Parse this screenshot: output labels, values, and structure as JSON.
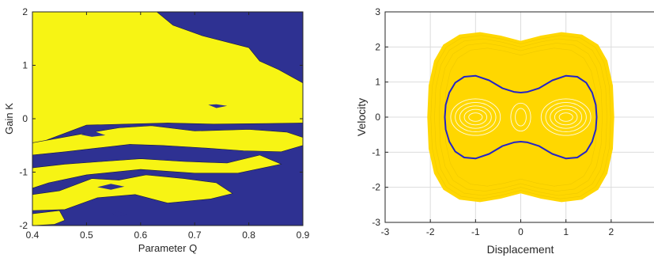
{
  "chart_data": [
    {
      "type": "contour",
      "xlabel": "Parameter Q",
      "ylabel": "Gain K",
      "xlim": [
        0.4,
        0.9
      ],
      "ylim": [
        -2,
        2
      ],
      "xticks": [
        "0.4",
        "0.5",
        "0.6",
        "0.7",
        "0.8",
        "0.9"
      ],
      "yticks": [
        "-2",
        "-1",
        "0",
        "1",
        "2"
      ],
      "colors": {
        "background": "#2E3192",
        "region": "#F7F414"
      },
      "grid": false,
      "regions": [
        [
          [
            0.4,
            2.0
          ],
          [
            0.63,
            2.0
          ],
          [
            0.66,
            1.75
          ],
          [
            0.715,
            1.55
          ],
          [
            0.8,
            1.33
          ],
          [
            0.82,
            1.08
          ],
          [
            0.855,
            0.92
          ],
          [
            0.9,
            0.67
          ],
          [
            0.9,
            -0.08
          ],
          [
            0.835,
            -0.09
          ],
          [
            0.735,
            -0.1
          ],
          [
            0.65,
            -0.08
          ],
          [
            0.5,
            -0.12
          ],
          [
            0.4,
            -0.5
          ]
        ],
        [
          [
            0.4,
            -0.45
          ],
          [
            0.5,
            -0.27
          ],
          [
            0.56,
            -0.17
          ],
          [
            0.62,
            -0.13
          ],
          [
            0.7,
            -0.23
          ],
          [
            0.8,
            -0.2
          ],
          [
            0.87,
            -0.25
          ],
          [
            0.9,
            -0.35
          ],
          [
            0.9,
            -0.5
          ],
          [
            0.86,
            -0.62
          ],
          [
            0.79,
            -0.6
          ],
          [
            0.72,
            -0.55
          ],
          [
            0.64,
            -0.5
          ],
          [
            0.58,
            -0.48
          ],
          [
            0.52,
            -0.55
          ],
          [
            0.46,
            -0.62
          ],
          [
            0.4,
            -0.68
          ]
        ],
        [
          [
            0.4,
            -0.92
          ],
          [
            0.46,
            -0.85
          ],
          [
            0.53,
            -0.8
          ],
          [
            0.6,
            -0.75
          ],
          [
            0.68,
            -0.8
          ],
          [
            0.76,
            -0.83
          ],
          [
            0.82,
            -0.68
          ],
          [
            0.86,
            -0.85
          ],
          [
            0.78,
            -1.02
          ],
          [
            0.7,
            -1.02
          ],
          [
            0.6,
            -0.95
          ],
          [
            0.5,
            -1.05
          ],
          [
            0.43,
            -1.2
          ],
          [
            0.4,
            -1.3
          ]
        ],
        [
          [
            0.4,
            -1.42
          ],
          [
            0.45,
            -1.35
          ],
          [
            0.51,
            -1.12
          ],
          [
            0.56,
            -1.15
          ],
          [
            0.61,
            -1.05
          ],
          [
            0.68,
            -1.12
          ],
          [
            0.74,
            -1.2
          ],
          [
            0.77,
            -1.4
          ],
          [
            0.73,
            -1.5
          ],
          [
            0.65,
            -1.58
          ],
          [
            0.59,
            -1.42
          ],
          [
            0.52,
            -1.48
          ],
          [
            0.46,
            -1.7
          ],
          [
            0.4,
            -1.72
          ]
        ],
        [
          [
            0.4,
            -1.78
          ],
          [
            0.45,
            -1.72
          ],
          [
            0.46,
            -1.9
          ],
          [
            0.44,
            -1.98
          ],
          [
            0.4,
            -2.0
          ]
        ]
      ],
      "holes": [
        [
          [
            0.725,
            0.26
          ],
          [
            0.74,
            0.2
          ],
          [
            0.76,
            0.24
          ],
          [
            0.74,
            0.27
          ]
        ],
        [
          [
            0.49,
            -0.3
          ],
          [
            0.51,
            -0.22
          ],
          [
            0.535,
            -0.31
          ],
          [
            0.51,
            -0.34
          ]
        ],
        [
          [
            0.52,
            -1.28
          ],
          [
            0.545,
            -1.22
          ],
          [
            0.57,
            -1.27
          ],
          [
            0.545,
            -1.33
          ]
        ],
        [
          [
            0.545,
            -1.78
          ],
          [
            0.56,
            -1.74
          ],
          [
            0.575,
            -1.8
          ],
          [
            0.558,
            -1.83
          ]
        ]
      ]
    },
    {
      "type": "line",
      "xlabel": "Displacement",
      "ylabel": "Velocity",
      "xlim": [
        -3,
        3
      ],
      "ylim": [
        -3,
        3
      ],
      "xticks": [
        "-3",
        "-2",
        "-1",
        "0",
        "1",
        "2",
        "3"
      ],
      "yticks": [
        "-3",
        "-2",
        "-1",
        "0",
        "1",
        "2",
        "3"
      ],
      "grid": true,
      "series": [
        {
          "style": "chaotic-trajectory-band",
          "color": "#FFD700",
          "outer_envelope": [
            [
              -2.05,
              0
            ],
            [
              -2.02,
              0.9
            ],
            [
              -1.9,
              1.6
            ],
            [
              -1.7,
              2.05
            ],
            [
              -1.35,
              2.33
            ],
            [
              -0.9,
              2.4
            ],
            [
              -0.45,
              2.3
            ],
            [
              0.0,
              2.15
            ],
            [
              0.45,
              2.3
            ],
            [
              0.9,
              2.4
            ],
            [
              1.35,
              2.33
            ],
            [
              1.7,
              2.05
            ],
            [
              1.9,
              1.6
            ],
            [
              2.02,
              0.9
            ],
            [
              2.05,
              0
            ],
            [
              2.02,
              -0.9
            ],
            [
              1.9,
              -1.6
            ],
            [
              1.7,
              -2.05
            ],
            [
              1.35,
              -2.33
            ],
            [
              0.9,
              -2.4
            ],
            [
              0.45,
              -2.3
            ],
            [
              0.0,
              -2.15
            ],
            [
              -0.45,
              -2.3
            ],
            [
              -0.9,
              -2.4
            ],
            [
              -1.35,
              -2.33
            ],
            [
              -1.7,
              -2.05
            ],
            [
              -1.9,
              -1.6
            ],
            [
              -2.02,
              -0.9
            ]
          ],
          "inner_loops": [
            {
              "cx": -1.0,
              "cy": 0,
              "rx": [
                0.15,
                0.25,
                0.35,
                0.45,
                0.55
              ],
              "ry": [
                0.12,
                0.22,
                0.32,
                0.42,
                0.52
              ]
            },
            {
              "cx": 1.0,
              "cy": 0,
              "rx": [
                0.15,
                0.25,
                0.35,
                0.45,
                0.55
              ],
              "ry": [
                0.12,
                0.22,
                0.32,
                0.42,
                0.52
              ]
            },
            {
              "cx": 0.0,
              "cy": 0,
              "rx": [
                0.12,
                0.22
              ],
              "ry": [
                0.25,
                0.4
              ]
            }
          ]
        },
        {
          "style": "closed-orbit",
          "color": "#2323C8",
          "points": [
            [
              -1.68,
              0.0
            ],
            [
              -1.66,
              0.35
            ],
            [
              -1.58,
              0.7
            ],
            [
              -1.45,
              0.98
            ],
            [
              -1.25,
              1.15
            ],
            [
              -1.0,
              1.18
            ],
            [
              -0.7,
              1.05
            ],
            [
              -0.4,
              0.82
            ],
            [
              -0.15,
              0.72
            ],
            [
              0.0,
              0.7
            ],
            [
              0.15,
              0.72
            ],
            [
              0.4,
              0.82
            ],
            [
              0.7,
              1.05
            ],
            [
              1.0,
              1.18
            ],
            [
              1.25,
              1.15
            ],
            [
              1.45,
              0.98
            ],
            [
              1.58,
              0.7
            ],
            [
              1.66,
              0.35
            ],
            [
              1.68,
              0.0
            ],
            [
              1.66,
              -0.35
            ],
            [
              1.58,
              -0.7
            ],
            [
              1.45,
              -0.98
            ],
            [
              1.25,
              -1.15
            ],
            [
              1.0,
              -1.18
            ],
            [
              0.7,
              -1.05
            ],
            [
              0.4,
              -0.82
            ],
            [
              0.15,
              -0.72
            ],
            [
              0.0,
              -0.7
            ],
            [
              -0.15,
              -0.72
            ],
            [
              -0.4,
              -0.82
            ],
            [
              -0.7,
              -1.05
            ],
            [
              -1.0,
              -1.18
            ],
            [
              -1.25,
              -1.15
            ],
            [
              -1.45,
              -0.98
            ],
            [
              -1.58,
              -0.7
            ],
            [
              -1.66,
              -0.35
            ]
          ]
        }
      ]
    }
  ]
}
